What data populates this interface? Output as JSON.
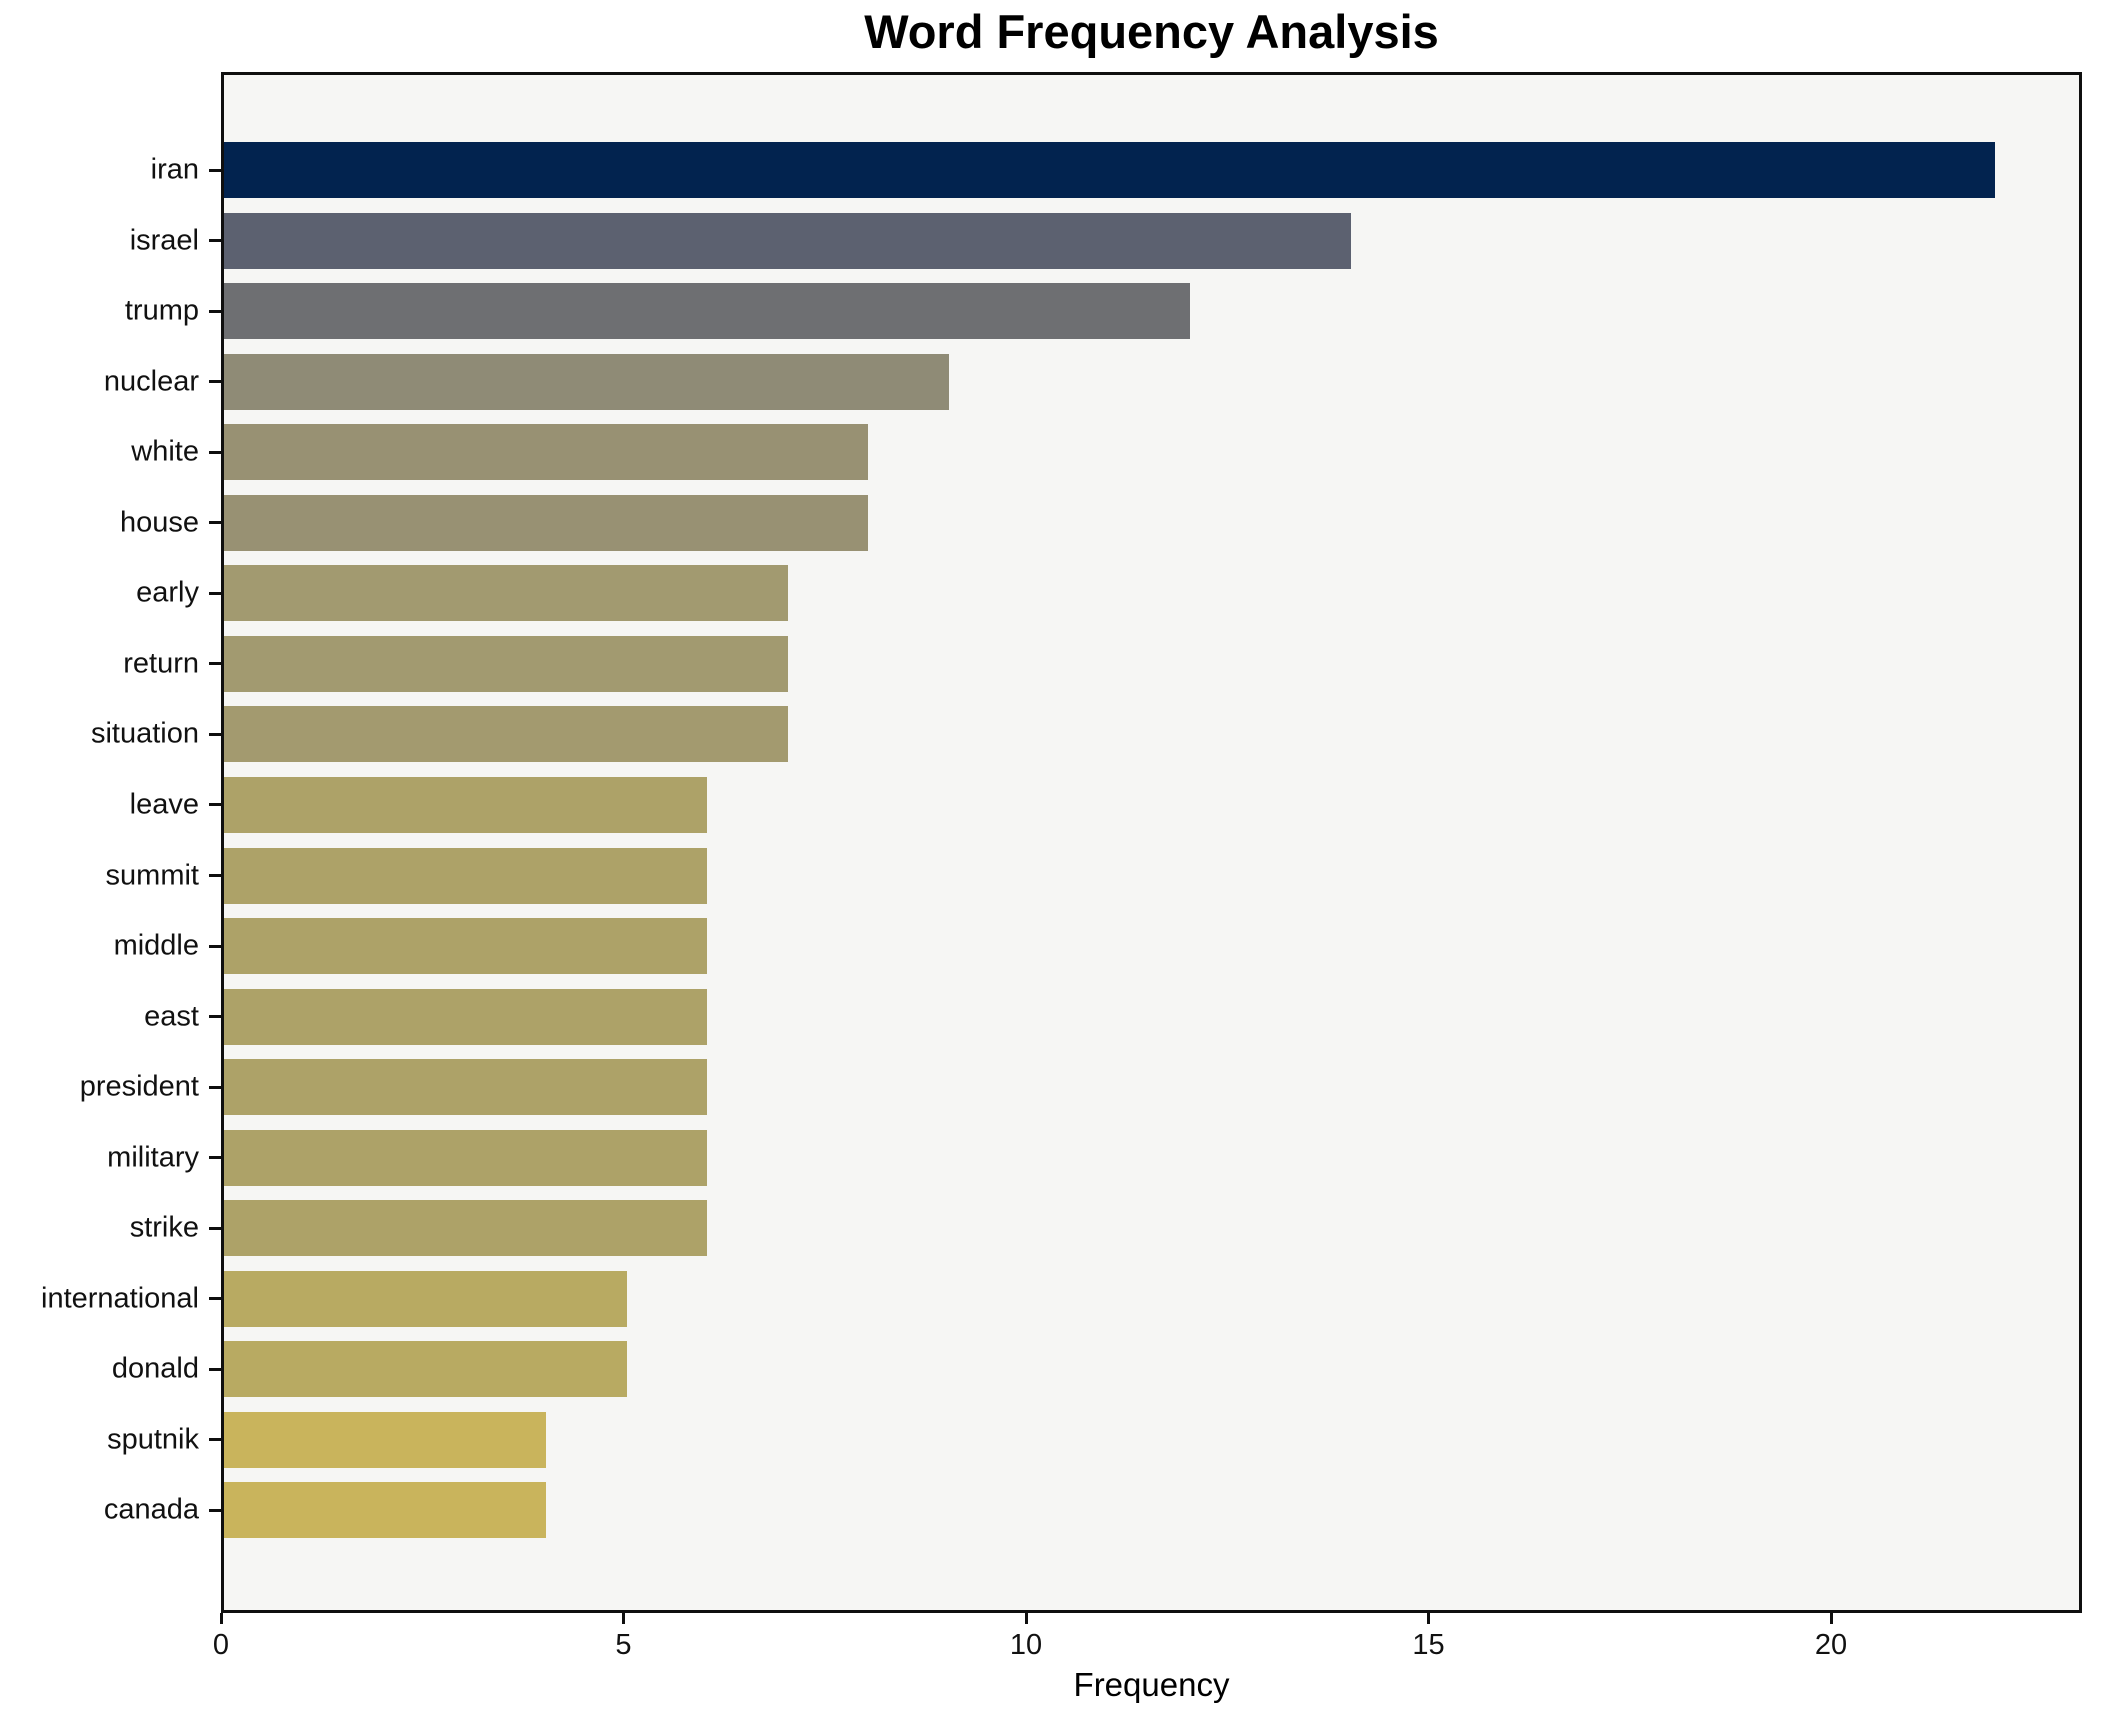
{
  "figure": {
    "title": "Word Frequency Analysis",
    "xlabel": "Frequency"
  },
  "chart_data": {
    "type": "bar",
    "orientation": "horizontal",
    "title": "Word Frequency Analysis",
    "xlabel": "Frequency",
    "ylabel": "",
    "categories": [
      "iran",
      "israel",
      "trump",
      "nuclear",
      "white",
      "house",
      "early",
      "return",
      "situation",
      "leave",
      "summit",
      "middle",
      "east",
      "president",
      "military",
      "strike",
      "international",
      "donald",
      "sputnik",
      "canada"
    ],
    "values": [
      22,
      14,
      12,
      9,
      8,
      8,
      7,
      7,
      7,
      6,
      6,
      6,
      6,
      6,
      6,
      6,
      5,
      5,
      4,
      4
    ],
    "bar_colors": [
      "#02234f",
      "#5c6170",
      "#6e6f72",
      "#8f8b76",
      "#989173",
      "#989173",
      "#a29a70",
      "#a29a70",
      "#a39a6f",
      "#ada268",
      "#ada268",
      "#ada268",
      "#ada268",
      "#ada268",
      "#ada268",
      "#ada268",
      "#b8aa62",
      "#b8aa62",
      "#c9b45c",
      "#c9b45c"
    ],
    "xticks": [
      0,
      5,
      10,
      15,
      20
    ],
    "xlim": [
      0,
      23.1
    ],
    "grid": false,
    "legend": null,
    "plot_background": "#f6f6f4",
    "figure_background": "#ffffff",
    "spine_color": "#0f0f0f",
    "tick_label_color": "#111111"
  }
}
